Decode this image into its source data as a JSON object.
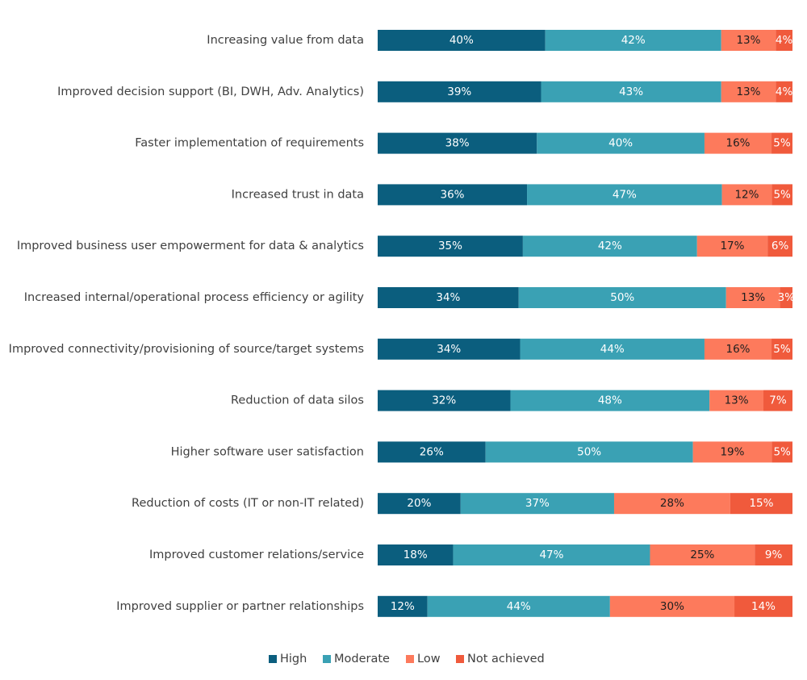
{
  "chart_data": {
    "type": "bar",
    "orientation": "horizontal",
    "stacked": true,
    "title": "",
    "xlabel": "",
    "ylabel": "",
    "xlim": [
      0,
      100
    ],
    "grid": false,
    "legend_position": "bottom",
    "categories": [
      "Increasing value from data",
      "Improved decision support (BI, DWH, Adv. Analytics)",
      "Faster implementation of requirements",
      "Increased trust in data",
      "Improved business user empowerment for data & analytics",
      "Increased internal/operational process efficiency or agility",
      "Improved connectivity/provisioning of source/target systems",
      "Reduction of data silos",
      "Higher software user satisfaction",
      "Reduction of costs (IT or non-IT related)",
      "Improved customer relations/service",
      "Improved supplier or partner relationships"
    ],
    "series": [
      {
        "name": "High",
        "color": "#0b5e7e",
        "label_color": "#ffffff",
        "values": [
          40,
          39,
          38,
          36,
          35,
          34,
          34,
          32,
          26,
          20,
          18,
          12
        ],
        "labels": [
          "40%",
          "39%",
          "38%",
          "36%",
          "35%",
          "34%",
          "34%",
          "32%",
          "26%",
          "20%",
          "18%",
          "12%"
        ]
      },
      {
        "name": "Moderate",
        "color": "#3aa1b4",
        "label_color": "#ffffff",
        "values": [
          42,
          43,
          40,
          47,
          42,
          50,
          44,
          48,
          50,
          37,
          47,
          44
        ],
        "labels": [
          "42%",
          "43%",
          "40%",
          "47%",
          "42%",
          "50%",
          "44%",
          "48%",
          "50%",
          "37%",
          "47%",
          "44%"
        ]
      },
      {
        "name": "Low",
        "color": "#fd7a5c",
        "label_color": "#1f1f1f",
        "values": [
          13,
          13,
          16,
          12,
          17,
          13,
          16,
          13,
          19,
          28,
          25,
          30
        ],
        "labels": [
          "13%",
          "13%",
          "16%",
          "12%",
          "17%",
          "13%",
          "16%",
          "13%",
          "19%",
          "28%",
          "25%",
          "30%"
        ]
      },
      {
        "name": "Not achieved",
        "color": "#f05a3c",
        "label_color": "#ffffff",
        "values": [
          4,
          4,
          5,
          5,
          6,
          3,
          5,
          7,
          5,
          15,
          9,
          14
        ],
        "labels": [
          "4%",
          "4%",
          "5%",
          "5%",
          "6%",
          "3%",
          "5%",
          "7%",
          "5%",
          "15%",
          "9%",
          "14%"
        ]
      }
    ]
  }
}
